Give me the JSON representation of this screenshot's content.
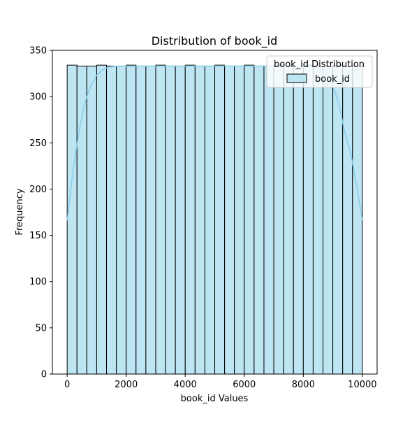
{
  "chart_data": {
    "type": "bar",
    "title": "Distribution of book_id",
    "xlabel": "book_id Values",
    "ylabel": "Frequency",
    "xlim": [
      -500,
      10500
    ],
    "ylim": [
      0,
      350
    ],
    "xticks": [
      0,
      2000,
      4000,
      6000,
      8000,
      10000
    ],
    "yticks": [
      0,
      50,
      100,
      150,
      200,
      250,
      300,
      350
    ],
    "bin_start": 1,
    "bin_end": 10000,
    "bins": 30,
    "values": [
      334,
      333,
      333,
      334,
      333,
      333,
      334,
      333,
      333,
      334,
      333,
      333,
      334,
      333,
      333,
      334,
      333,
      333,
      334,
      333,
      333,
      334,
      333,
      333,
      334,
      333,
      333,
      334,
      333,
      333
    ],
    "kde": {
      "x": [
        1,
        200,
        400,
        600,
        800,
        1000,
        1200,
        1400,
        1700,
        2000,
        3000,
        4000,
        5000,
        6000,
        7000,
        8000,
        8300,
        8600,
        8800,
        9000,
        9200,
        9400,
        9600,
        9800,
        10000
      ],
      "y": [
        166,
        220,
        262,
        293,
        312,
        323,
        329,
        332,
        333,
        333,
        333,
        333,
        333,
        333,
        333,
        333,
        332,
        329,
        323,
        312,
        293,
        262,
        240,
        205,
        166
      ]
    },
    "bar_color": "#bde5f2",
    "bar_edge_color": "#000000",
    "kde_color": "#87ceeb",
    "grid": false,
    "legend": {
      "title": "book_id Distribution",
      "entries": [
        "book_id"
      ],
      "placement": "top-right"
    }
  }
}
